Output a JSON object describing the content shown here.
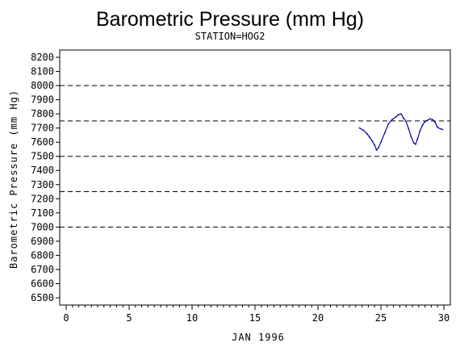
{
  "chart_data": {
    "type": "line",
    "title": "Barometric Pressure (mm Hg)",
    "subtitle": "STATION=HOG2",
    "xlabel": "JAN 1996",
    "ylabel": "Barometric Pressure (mm Hg)",
    "xlim": [
      0,
      30
    ],
    "ylim": [
      6500,
      8200
    ],
    "x_ticks": [
      0,
      5,
      10,
      15,
      20,
      25,
      30
    ],
    "x_minor_step": 0.5,
    "y_ticks": [
      6500,
      6600,
      6700,
      6800,
      6900,
      7000,
      7100,
      7200,
      7300,
      7400,
      7500,
      7600,
      7700,
      7800,
      7900,
      8000,
      8100,
      8200
    ],
    "reference_lines": [
      7000,
      7250,
      7500,
      7750,
      8000
    ],
    "line_color": "#0000aa",
    "grid": false,
    "legend": "none",
    "series": [
      {
        "x": [
          23.3,
          23.6,
          23.9,
          24.1,
          24.3,
          24.5,
          24.65,
          24.8,
          25.0,
          25.3,
          25.6,
          25.9,
          26.2,
          26.4,
          26.6,
          26.8,
          27.0,
          27.2,
          27.4,
          27.6,
          27.75,
          27.9,
          28.1,
          28.3,
          28.5,
          28.7,
          28.9,
          29.1,
          29.3,
          29.5,
          29.7,
          29.9
        ],
        "y": [
          7700,
          7685,
          7660,
          7635,
          7610,
          7580,
          7545,
          7560,
          7600,
          7665,
          7730,
          7760,
          7780,
          7795,
          7800,
          7770,
          7745,
          7695,
          7640,
          7595,
          7585,
          7620,
          7680,
          7720,
          7745,
          7755,
          7765,
          7760,
          7740,
          7705,
          7695,
          7690
        ]
      }
    ]
  }
}
